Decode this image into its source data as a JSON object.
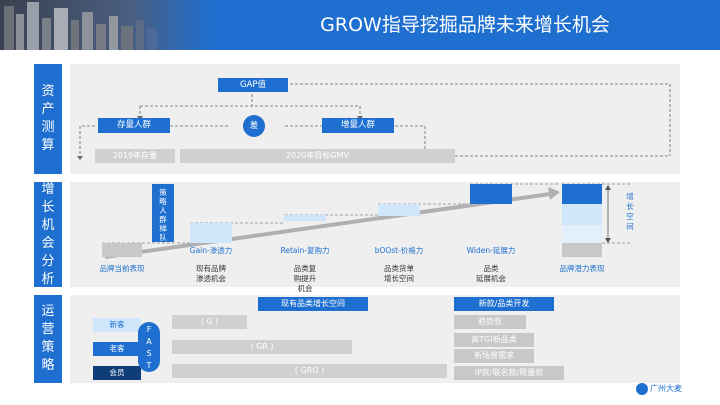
{
  "title": "GROW指导挖掘品牌未来增长机会",
  "sections": {
    "assets": "资产测算",
    "growth": "增长机会分析",
    "ops": "运营策略"
  },
  "assets": {
    "gap": "GAP值",
    "diff": "差",
    "existing": "存量人群",
    "incremental": "增量人群",
    "y2019": "2019年存量",
    "y2020": "2020年目标GMV"
  },
  "growth": {
    "strategy": "策略人群梯队",
    "gain": "Gain-渗透力",
    "retain": "Retain-复购力",
    "boost": "bOOst-价格力",
    "widen": "Widen-延展力",
    "current": "品牌当前表现",
    "potential": "品牌潜力表现",
    "space": "增长空间",
    "desc_gain": [
      "现有品牌",
      "渗透机会"
    ],
    "desc_retain": [
      "品类复",
      "购提升",
      "机会"
    ],
    "desc_boost": [
      "品类货单",
      "增长空间"
    ],
    "desc_widen": [
      "品类",
      "延展机会"
    ]
  },
  "ops": {
    "existing_space": "现有品类增长空间",
    "new_dev": "新款/品类开发",
    "new_cust": "新客",
    "old_cust": "老客",
    "member": "会员",
    "fast": [
      "F",
      "A",
      "S",
      "T"
    ],
    "g": "( G )",
    "gr": "( GR )",
    "gro": "( GRO )",
    "trend": "趋势款",
    "tgi": "高TGI新品类",
    "scene": "新场景需求",
    "ip": "IP款/联名款/限量款"
  },
  "logo": "广州大麦",
  "colors": {
    "blue": "#1e6fd0",
    "light_blue": "#cfe6fb",
    "grey": "#d0d0d0",
    "panel": "#efefef"
  }
}
